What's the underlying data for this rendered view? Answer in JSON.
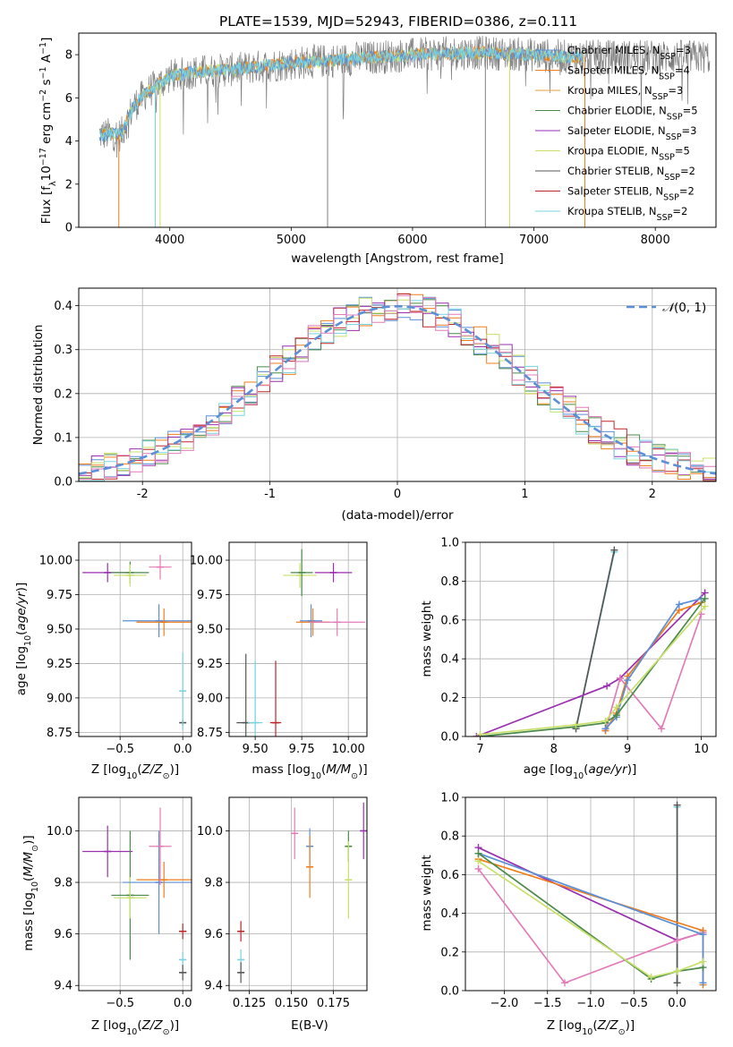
{
  "figure": {
    "title": "PLATE=1539, MJD=52943, FIBERID=0386, z=0.111"
  },
  "colors": {
    "chabrier_miles": "#5b8fd6",
    "salpeter_miles": "#f07d1c",
    "kroupa_miles": "#e1a13a",
    "chabrier_elodie": "#4a8a4a",
    "salpeter_elodie": "#9a2fb0",
    "kroupa_elodie": "#c8e06a",
    "chabrier_stelib": "#555555",
    "salpeter_stelib": "#c0262a",
    "kroupa_stelib": "#79d3e0",
    "pink": "#e27cb8",
    "spectrum_gray": "#7f7f7f",
    "gauss": "#5b8fd6"
  },
  "chart_data": [
    {
      "id": "spectrum",
      "type": "line",
      "xlabel": "wavelength [Angstrom, rest frame]",
      "ylabel": "Flux [f_λ10^-17 erg cm^-2 s^-1 A^-1]",
      "xlim": [
        3250,
        8500
      ],
      "ylim": [
        0,
        9
      ],
      "xticks": [
        4000,
        5000,
        6000,
        7000,
        8000
      ],
      "yticks": [
        0,
        2,
        4,
        6,
        8
      ],
      "grid": false,
      "legend_position": "upper-right",
      "legend": [
        {
          "text": "Chabrier MILES, N_SSP=3",
          "color": "#5b8fd6"
        },
        {
          "text": "Salpeter MILES, N_SSP=4",
          "color": "#f07d1c"
        },
        {
          "text": "Kroupa MILES, N_SSP=3",
          "color": "#e1a13a"
        },
        {
          "text": "Chabrier ELODIE, N_SSP=5",
          "color": "#4a8a4a"
        },
        {
          "text": "Salpeter ELODIE, N_SSP=3",
          "color": "#9a2fb0"
        },
        {
          "text": "Kroupa ELODIE, N_SSP=5",
          "color": "#c8e06a"
        },
        {
          "text": "Chabrier STELIB, N_SSP=2",
          "color": "#555555"
        },
        {
          "text": "Salpeter STELIB, N_SSP=2",
          "color": "#c0262a"
        },
        {
          "text": "Kroupa STELIB, N_SSP=2",
          "color": "#79d3e0"
        }
      ],
      "continuum_x": [
        3420,
        3600,
        3700,
        3800,
        3900,
        4000,
        4200,
        4500,
        5000,
        5500,
        6000,
        6500,
        7000,
        7300
      ],
      "continuum_y": [
        4.3,
        4.3,
        5.6,
        6.2,
        6.6,
        7.0,
        7.2,
        7.3,
        7.6,
        7.8,
        8.0,
        8.1,
        8.0,
        7.9
      ],
      "observed_x_range": [
        3420,
        8450
      ],
      "model_x_range": [
        3420,
        7400
      ]
    },
    {
      "id": "residuals",
      "type": "histogram",
      "xlabel": "(data-model)/error",
      "ylabel": "Normed distribution",
      "xlim": [
        -2.5,
        2.5
      ],
      "ylim": [
        0,
        0.44
      ],
      "xticks": [
        -2,
        -1,
        0,
        1,
        2
      ],
      "yticks": [
        0.0,
        0.1,
        0.2,
        0.3,
        0.4
      ],
      "grid": true,
      "legend_position": "upper-right",
      "legend": [
        {
          "text": "N(0,1)",
          "color": "#5b8fd6",
          "style": "dashed"
        }
      ],
      "bin_width": 0.1
    },
    {
      "id": "age_vs_Z",
      "type": "errorbar",
      "xlabel": "Z [log10(Z/Z⊙)]",
      "ylabel": "age  [log10(age/yr)]",
      "xlim": [
        -0.83,
        0.07
      ],
      "ylim": [
        8.72,
        10.13
      ],
      "xticks": [
        -0.5,
        0.0
      ],
      "xticklabels": [
        "−0.5",
        "0.0"
      ],
      "yticks": [
        8.75,
        9.0,
        9.25,
        9.5,
        9.75,
        10.0
      ],
      "yticklabels": [
        "8.75",
        "9.00",
        "9.25",
        "9.50",
        "9.75",
        "10.00"
      ],
      "grid": true,
      "points": [
        {
          "color": "#9a2fb0",
          "x": -0.6,
          "y": 9.91,
          "xerr": 0.2,
          "yerr": 0.07
        },
        {
          "color": "#4a8a4a",
          "x": -0.42,
          "y": 9.91,
          "xerr": 0.15,
          "yerr": 0.08
        },
        {
          "color": "#c8e06a",
          "x": -0.42,
          "y": 9.89,
          "xerr": 0.13,
          "yerr": 0.08
        },
        {
          "color": "#e27cb8",
          "x": -0.18,
          "y": 9.95,
          "xerr": 0.09,
          "yerr": 0.09
        },
        {
          "color": "#5b8fd6",
          "x": -0.19,
          "y": 9.56,
          "xerr": 0.29,
          "yerr": 0.12
        },
        {
          "color": "#f07d1c",
          "x": -0.15,
          "y": 9.55,
          "xerr": 0.22,
          "yerr": 0.1
        },
        {
          "color": "#555555",
          "x": 0.0,
          "y": 8.82,
          "xerr": 0.01,
          "yerr": 0.02
        },
        {
          "color": "#79d3e0",
          "x": 0.0,
          "y": 9.05,
          "xerr": 0.01,
          "yerr": 0.28
        }
      ]
    },
    {
      "id": "age_vs_mass",
      "type": "errorbar",
      "xlabel": "mass [log10(M/M⊙)]",
      "ylabel": "",
      "xlim": [
        9.36,
        10.1
      ],
      "ylim": [
        8.72,
        10.13
      ],
      "xticks": [
        9.5,
        9.75,
        10.0
      ],
      "xticklabels": [
        "9.50",
        "9.75",
        "10.00"
      ],
      "yticks": [
        8.75,
        9.0,
        9.25,
        9.5,
        9.75,
        10.0
      ],
      "yticklabels": [
        "8.75",
        "9.00",
        "9.25",
        "9.50",
        "9.75",
        "10.00"
      ],
      "grid": true,
      "points": [
        {
          "color": "#555555",
          "x": 9.45,
          "y": 8.82,
          "xerr": 0.05,
          "yerr": 0.5
        },
        {
          "color": "#79d3e0",
          "x": 9.5,
          "y": 8.82,
          "xerr": 0.04,
          "yerr": 0.45
        },
        {
          "color": "#c0262a",
          "x": 9.61,
          "y": 8.82,
          "xerr": 0.03,
          "yerr": 0.45
        },
        {
          "color": "#c8e06a",
          "x": 9.74,
          "y": 9.89,
          "xerr": 0.09,
          "yerr": 0.09
        },
        {
          "color": "#4a8a4a",
          "x": 9.75,
          "y": 9.91,
          "xerr": 0.06,
          "yerr": 0.17
        },
        {
          "color": "#5b8fd6",
          "x": 9.8,
          "y": 9.56,
          "xerr": 0.06,
          "yerr": 0.12
        },
        {
          "color": "#f07d1c",
          "x": 9.81,
          "y": 9.55,
          "xerr": 0.09,
          "yerr": 0.1
        },
        {
          "color": "#9a2fb0",
          "x": 9.92,
          "y": 9.91,
          "xerr": 0.1,
          "yerr": 0.07
        },
        {
          "color": "#e27cb8",
          "x": 9.94,
          "y": 9.55,
          "xerr": 0.15,
          "yerr": 0.1
        }
      ]
    },
    {
      "id": "weight_vs_age",
      "type": "line",
      "xlabel": "age  [log10(age/yr)]",
      "ylabel": "mass weight",
      "xlim": [
        6.8,
        10.2
      ],
      "ylim": [
        0,
        1.0
      ],
      "xticks": [
        7,
        8,
        9,
        10
      ],
      "yticks": [
        0.0,
        0.2,
        0.4,
        0.6,
        0.8,
        1.0
      ],
      "grid": true,
      "series": [
        {
          "color": "#79d3e0",
          "x": [
            8.3,
            8.82
          ],
          "y": [
            0.04,
            0.95
          ]
        },
        {
          "color": "#555555",
          "x": [
            8.3,
            8.82
          ],
          "y": [
            0.04,
            0.96
          ]
        },
        {
          "color": "#9a2fb0",
          "x": [
            6.95,
            8.72,
            8.9,
            10.05
          ],
          "y": [
            0.0,
            0.26,
            0.3,
            0.74
          ]
        },
        {
          "color": "#e27cb8",
          "x": [
            8.7,
            8.9,
            9.46,
            10.0
          ],
          "y": [
            0.03,
            0.3,
            0.04,
            0.63
          ]
        },
        {
          "color": "#f07d1c",
          "x": [
            8.7,
            8.85,
            9.0,
            9.7,
            10.0
          ],
          "y": [
            0.03,
            0.12,
            0.31,
            0.65,
            0.69
          ]
        },
        {
          "color": "#5b8fd6",
          "x": [
            8.7,
            8.85,
            9.0,
            9.7,
            10.0
          ],
          "y": [
            0.04,
            0.1,
            0.29,
            0.68,
            0.71
          ]
        },
        {
          "color": "#4a8a4a",
          "x": [
            7.0,
            8.3,
            8.7,
            8.85,
            10.05
          ],
          "y": [
            0.0,
            0.05,
            0.07,
            0.11,
            0.71
          ]
        },
        {
          "color": "#c8e06a",
          "x": [
            7.0,
            8.3,
            8.7,
            8.85,
            10.05
          ],
          "y": [
            0.01,
            0.06,
            0.08,
            0.15,
            0.67
          ]
        }
      ]
    },
    {
      "id": "mass_vs_Z",
      "type": "errorbar",
      "xlabel": "Z [log10(Z/Z⊙)]",
      "ylabel": "mass [log10(M/M⊙)]",
      "xlim": [
        -0.83,
        0.07
      ],
      "ylim": [
        9.38,
        10.13
      ],
      "xticks": [
        -0.5,
        0.0
      ],
      "xticklabels": [
        "−0.5",
        "0.0"
      ],
      "yticks": [
        9.4,
        9.6,
        9.8,
        10.0
      ],
      "yticklabels": [
        "9.4",
        "9.6",
        "9.8",
        "10.0"
      ],
      "grid": true,
      "points": [
        {
          "color": "#9a2fb0",
          "x": -0.6,
          "y": 9.92,
          "xerr": 0.2,
          "yerr": 0.1
        },
        {
          "color": "#4a8a4a",
          "x": -0.42,
          "y": 9.75,
          "xerr": 0.15,
          "yerr": 0.25
        },
        {
          "color": "#c8e06a",
          "x": -0.42,
          "y": 9.74,
          "xerr": 0.13,
          "yerr": 0.08
        },
        {
          "color": "#5b8fd6",
          "x": -0.19,
          "y": 9.8,
          "xerr": 0.29,
          "yerr": 0.2
        },
        {
          "color": "#f07d1c",
          "x": -0.15,
          "y": 9.81,
          "xerr": 0.22,
          "yerr": 0.07
        },
        {
          "color": "#e27cb8",
          "x": -0.18,
          "y": 9.94,
          "xerr": 0.09,
          "yerr": 0.15
        },
        {
          "color": "#c0262a",
          "x": 0.0,
          "y": 9.61,
          "xerr": 0.03,
          "yerr": 0.03
        },
        {
          "color": "#79d3e0",
          "x": 0.0,
          "y": 9.5,
          "xerr": 0.03,
          "yerr": 0.03
        },
        {
          "color": "#555555",
          "x": 0.0,
          "y": 9.45,
          "xerr": 0.03,
          "yerr": 0.03
        }
      ]
    },
    {
      "id": "mass_vs_ebv",
      "type": "errorbar",
      "xlabel": "E(B-V)",
      "ylabel": "",
      "xlim": [
        0.113,
        0.195
      ],
      "ylim": [
        9.38,
        10.13
      ],
      "xticks": [
        0.125,
        0.15,
        0.175
      ],
      "xticklabels": [
        "0.125",
        "0.150",
        "0.175"
      ],
      "yticks": [
        9.4,
        9.6,
        9.8,
        10.0
      ],
      "yticklabels": [
        "9.4",
        "9.6",
        "9.8",
        "10.0"
      ],
      "grid": true,
      "points": [
        {
          "color": "#c0262a",
          "x": 0.12,
          "y": 9.61,
          "xerr": 0.0,
          "yerr": 0.04
        },
        {
          "color": "#79d3e0",
          "x": 0.12,
          "y": 9.5,
          "xerr": 0.0,
          "yerr": 0.04
        },
        {
          "color": "#555555",
          "x": 0.12,
          "y": 9.45,
          "xerr": 0.0,
          "yerr": 0.04
        },
        {
          "color": "#e27cb8",
          "x": 0.152,
          "y": 9.99,
          "xerr": 0.0,
          "yerr": 0.1
        },
        {
          "color": "#5b8fd6",
          "x": 0.161,
          "y": 9.94,
          "xerr": 0.0,
          "yerr": 0.07
        },
        {
          "color": "#f07d1c",
          "x": 0.161,
          "y": 9.86,
          "xerr": 0.0,
          "yerr": 0.12
        },
        {
          "color": "#4a8a4a",
          "x": 0.184,
          "y": 9.94,
          "xerr": 0.0,
          "yerr": 0.06
        },
        {
          "color": "#c8e06a",
          "x": 0.184,
          "y": 9.81,
          "xerr": 0.0,
          "yerr": 0.15
        },
        {
          "color": "#9a2fb0",
          "x": 0.193,
          "y": 10.0,
          "xerr": 0.0,
          "yerr": 0.11
        }
      ]
    },
    {
      "id": "weight_vs_Z",
      "type": "line",
      "xlabel": "Z [log10(Z/Z⊙)]",
      "ylabel": "mass weight",
      "xlim": [
        -2.45,
        0.45
      ],
      "ylim": [
        0,
        1.0
      ],
      "xticks": [
        -2.0,
        -1.5,
        -1.0,
        -0.5,
        0.0
      ],
      "xticklabels": [
        "−2.0",
        "−1.5",
        "−1.0",
        "−0.5",
        "0.0"
      ],
      "yticks": [
        0.0,
        0.2,
        0.4,
        0.6,
        0.8,
        1.0
      ],
      "grid": true,
      "series": [
        {
          "color": "#79d3e0",
          "x": [
            0.0,
            0.0
          ],
          "y": [
            0.04,
            0.95
          ]
        },
        {
          "color": "#555555",
          "x": [
            0.0,
            0.0
          ],
          "y": [
            0.04,
            0.96
          ]
        },
        {
          "color": "#9a2fb0",
          "x": [
            -2.3,
            0.0,
            0.3
          ],
          "y": [
            0.74,
            0.26,
            0.3
          ]
        },
        {
          "color": "#e27cb8",
          "x": [
            -2.3,
            -1.3,
            0.0,
            0.3
          ],
          "y": [
            0.63,
            0.04,
            0.26,
            0.3
          ]
        },
        {
          "color": "#f07d1c",
          "x": [
            -2.3,
            0.3,
            0.3
          ],
          "y": [
            0.68,
            0.31,
            0.03
          ]
        },
        {
          "color": "#5b8fd6",
          "x": [
            -2.3,
            0.3,
            0.3
          ],
          "y": [
            0.71,
            0.29,
            0.04
          ]
        },
        {
          "color": "#4a8a4a",
          "x": [
            -2.3,
            -0.3,
            0.0,
            0.3
          ],
          "y": [
            0.71,
            0.06,
            0.1,
            0.12
          ]
        },
        {
          "color": "#c8e06a",
          "x": [
            -2.3,
            -0.3,
            0.0,
            0.3
          ],
          "y": [
            0.67,
            0.07,
            0.1,
            0.15
          ]
        }
      ]
    }
  ]
}
